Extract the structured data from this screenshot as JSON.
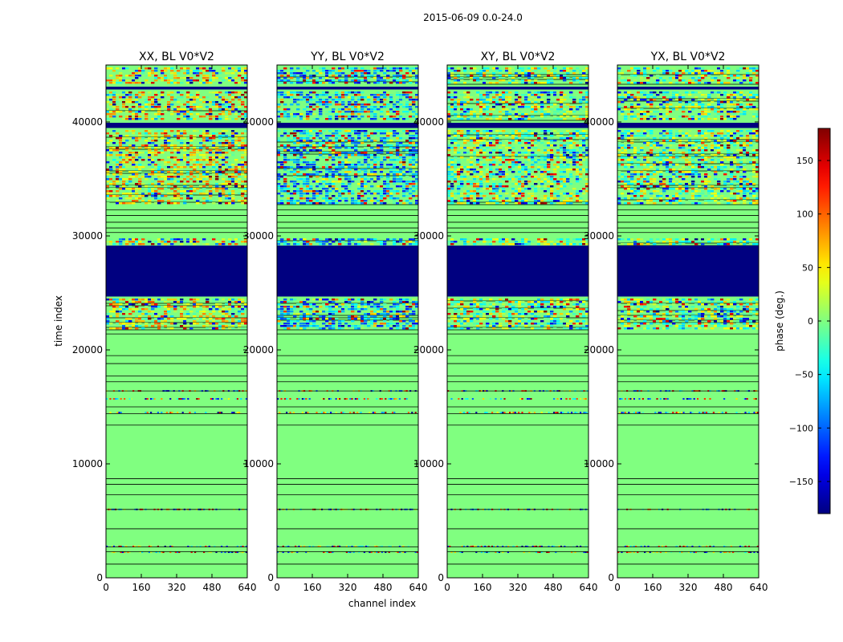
{
  "chart_data": {
    "type": "heatmap",
    "title": "2015-06-09 0.0-24.0",
    "xlabel": "channel index",
    "ylabel": "time index",
    "xlim": [
      0,
      640
    ],
    "ylim": [
      0,
      45000
    ],
    "xticks": [
      0,
      160,
      320,
      480,
      640
    ],
    "yticks": [
      0,
      10000,
      20000,
      30000,
      40000
    ],
    "panels": [
      {
        "title": "XX, BL V0*V2",
        "bias": "warm"
      },
      {
        "title": "YY, BL V0*V2",
        "bias": "cool"
      },
      {
        "title": "XY, BL V0*V2",
        "bias": "mixed"
      },
      {
        "title": "YX, BL V0*V2",
        "bias": "mixed"
      }
    ],
    "colorbar": {
      "label": "phase (deg.)",
      "vmin": -180,
      "vmax": 180,
      "ticks": [
        -150,
        -100,
        -50,
        0,
        50,
        100,
        150
      ],
      "colormap": [
        "#00007f",
        "#0000ff",
        "#007fff",
        "#00ffff",
        "#7fff7f",
        "#ffff00",
        "#ff7f00",
        "#ff0000",
        "#7f0000"
      ]
    },
    "flagged_value": "#000080",
    "flagged_time_ranges": [
      [
        24800,
        29300
      ],
      [
        39600,
        40100
      ],
      [
        42900,
        43300
      ]
    ],
    "noisy_time_ranges": [
      [
        21800,
        24700
      ],
      [
        29300,
        29900
      ],
      [
        32800,
        39400
      ],
      [
        40300,
        42800
      ],
      [
        43400,
        45000
      ]
    ],
    "sparse_noise_rows": [
      2250,
      2750,
      6000,
      14500,
      15700,
      16400
    ]
  }
}
